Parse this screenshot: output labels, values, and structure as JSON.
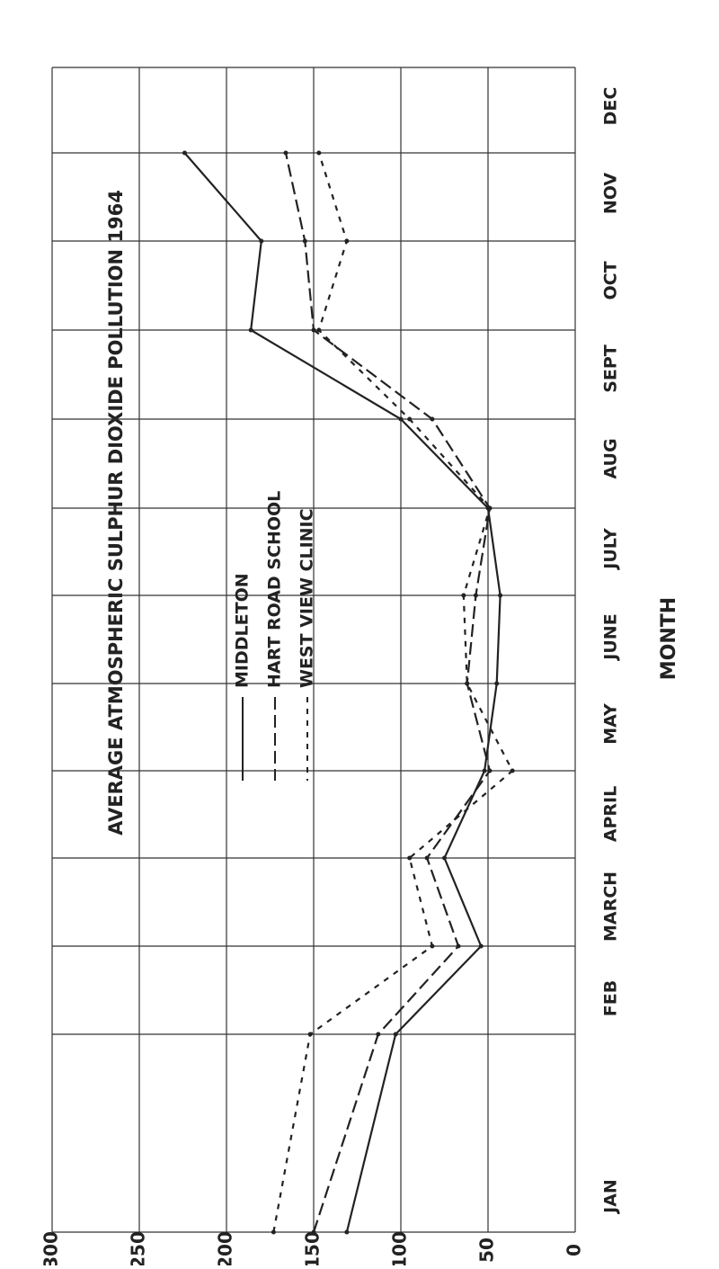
{
  "chart_data": {
    "type": "line",
    "title": "AVERAGE ATMOSPHERIC SULPHUR DIOXIDE POLLUTION 1964",
    "x_label": "MONTH",
    "categories": [
      "JAN",
      "FEB",
      "MARCH",
      "APRIL",
      "MAY",
      "JUNE",
      "JULY",
      "AUG",
      "SEPT",
      "OCT",
      "NOV",
      "DEC"
    ],
    "series": [
      {
        "name": "MIDDLETON",
        "color": "#222222",
        "style": "solid",
        "values": [
          131,
          103,
          54,
          75,
          52,
          45,
          43,
          50,
          100,
          186,
          180,
          224
        ]
      },
      {
        "name": "HART ROAD SCHOOL",
        "color": "#222222",
        "style": "dashed",
        "values": [
          150,
          113,
          67,
          85,
          49,
          62,
          57,
          49,
          82,
          150,
          155,
          166
        ]
      },
      {
        "name": "WEST VIEW CLINIC",
        "color": "#222222",
        "style": "dotted",
        "values": [
          173,
          152,
          82,
          95,
          36,
          62,
          64,
          49,
          95,
          147,
          131,
          147
        ]
      }
    ],
    "ylim": [
      0,
      300
    ],
    "yticks": [
      300,
      250,
      200,
      150,
      100,
      50,
      0
    ],
    "grid": true
  }
}
